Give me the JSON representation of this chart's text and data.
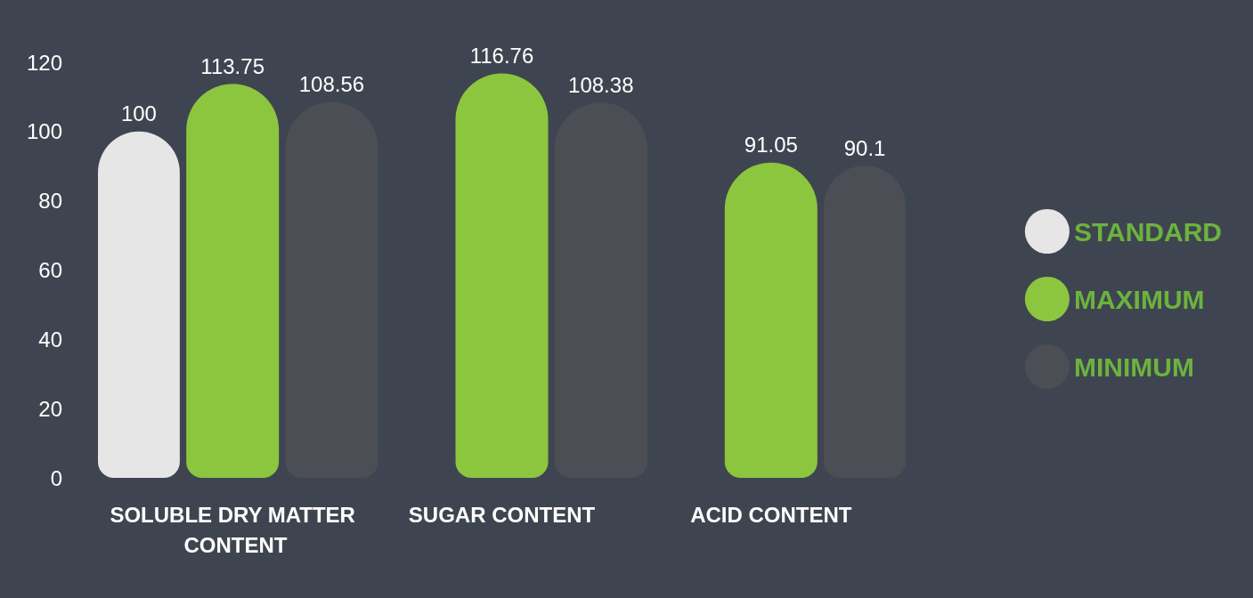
{
  "chart_data": {
    "type": "bar",
    "categories": [
      "SOLUBLE DRY MATTER CONTENT",
      "SUGAR CONTENT",
      "ACID CONTENT"
    ],
    "series": [
      {
        "name": "STANDARD",
        "color": "#e6e6e6",
        "values": [
          100,
          null,
          null
        ]
      },
      {
        "name": "MAXIMUM",
        "color": "#8cc63f",
        "values": [
          113.75,
          116.76,
          91.05
        ]
      },
      {
        "name": "MINIMUM",
        "color": "#4b4e54",
        "values": [
          108.56,
          108.38,
          90.1
        ]
      }
    ],
    "ylim": [
      0,
      120
    ],
    "yticks": [
      0,
      20,
      40,
      60,
      80,
      100,
      120
    ],
    "grid": false,
    "legend": "right",
    "data_labels": true
  }
}
